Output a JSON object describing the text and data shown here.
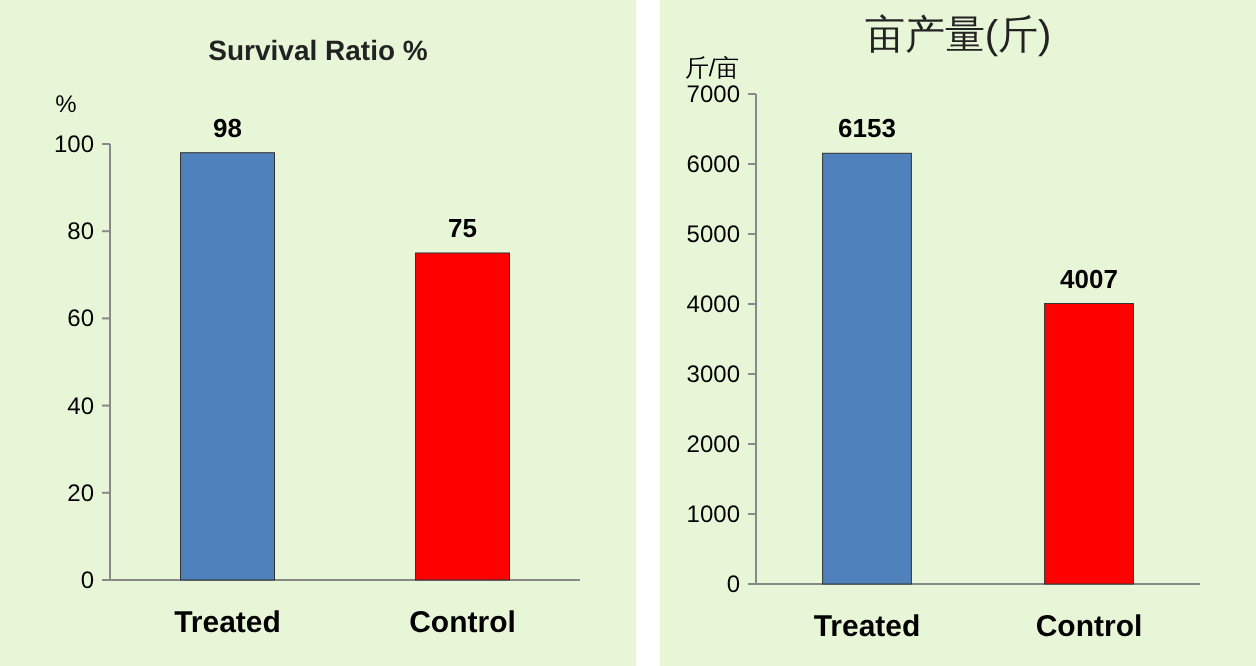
{
  "chart_data": [
    {
      "type": "bar",
      "title": "Survival Ratio %",
      "ylabel": "%",
      "categories": [
        "Treated",
        "Control"
      ],
      "colors": [
        "#4f81bd",
        "#ff0000"
      ],
      "values": [
        98,
        75
      ],
      "ylim": [
        0,
        100
      ],
      "yticks": [
        0,
        20,
        40,
        60,
        80,
        100
      ],
      "data_labels": true
    },
    {
      "type": "bar",
      "title": "亩产量(斤)",
      "ylabel": "斤/亩",
      "categories": [
        "Treated",
        "Control"
      ],
      "colors": [
        "#4f81bd",
        "#ff0000"
      ],
      "values": [
        6153,
        4007
      ],
      "ylim": [
        0,
        7000
      ],
      "yticks": [
        0,
        1000,
        2000,
        3000,
        4000,
        5000,
        6000,
        7000
      ],
      "data_labels": true
    }
  ]
}
